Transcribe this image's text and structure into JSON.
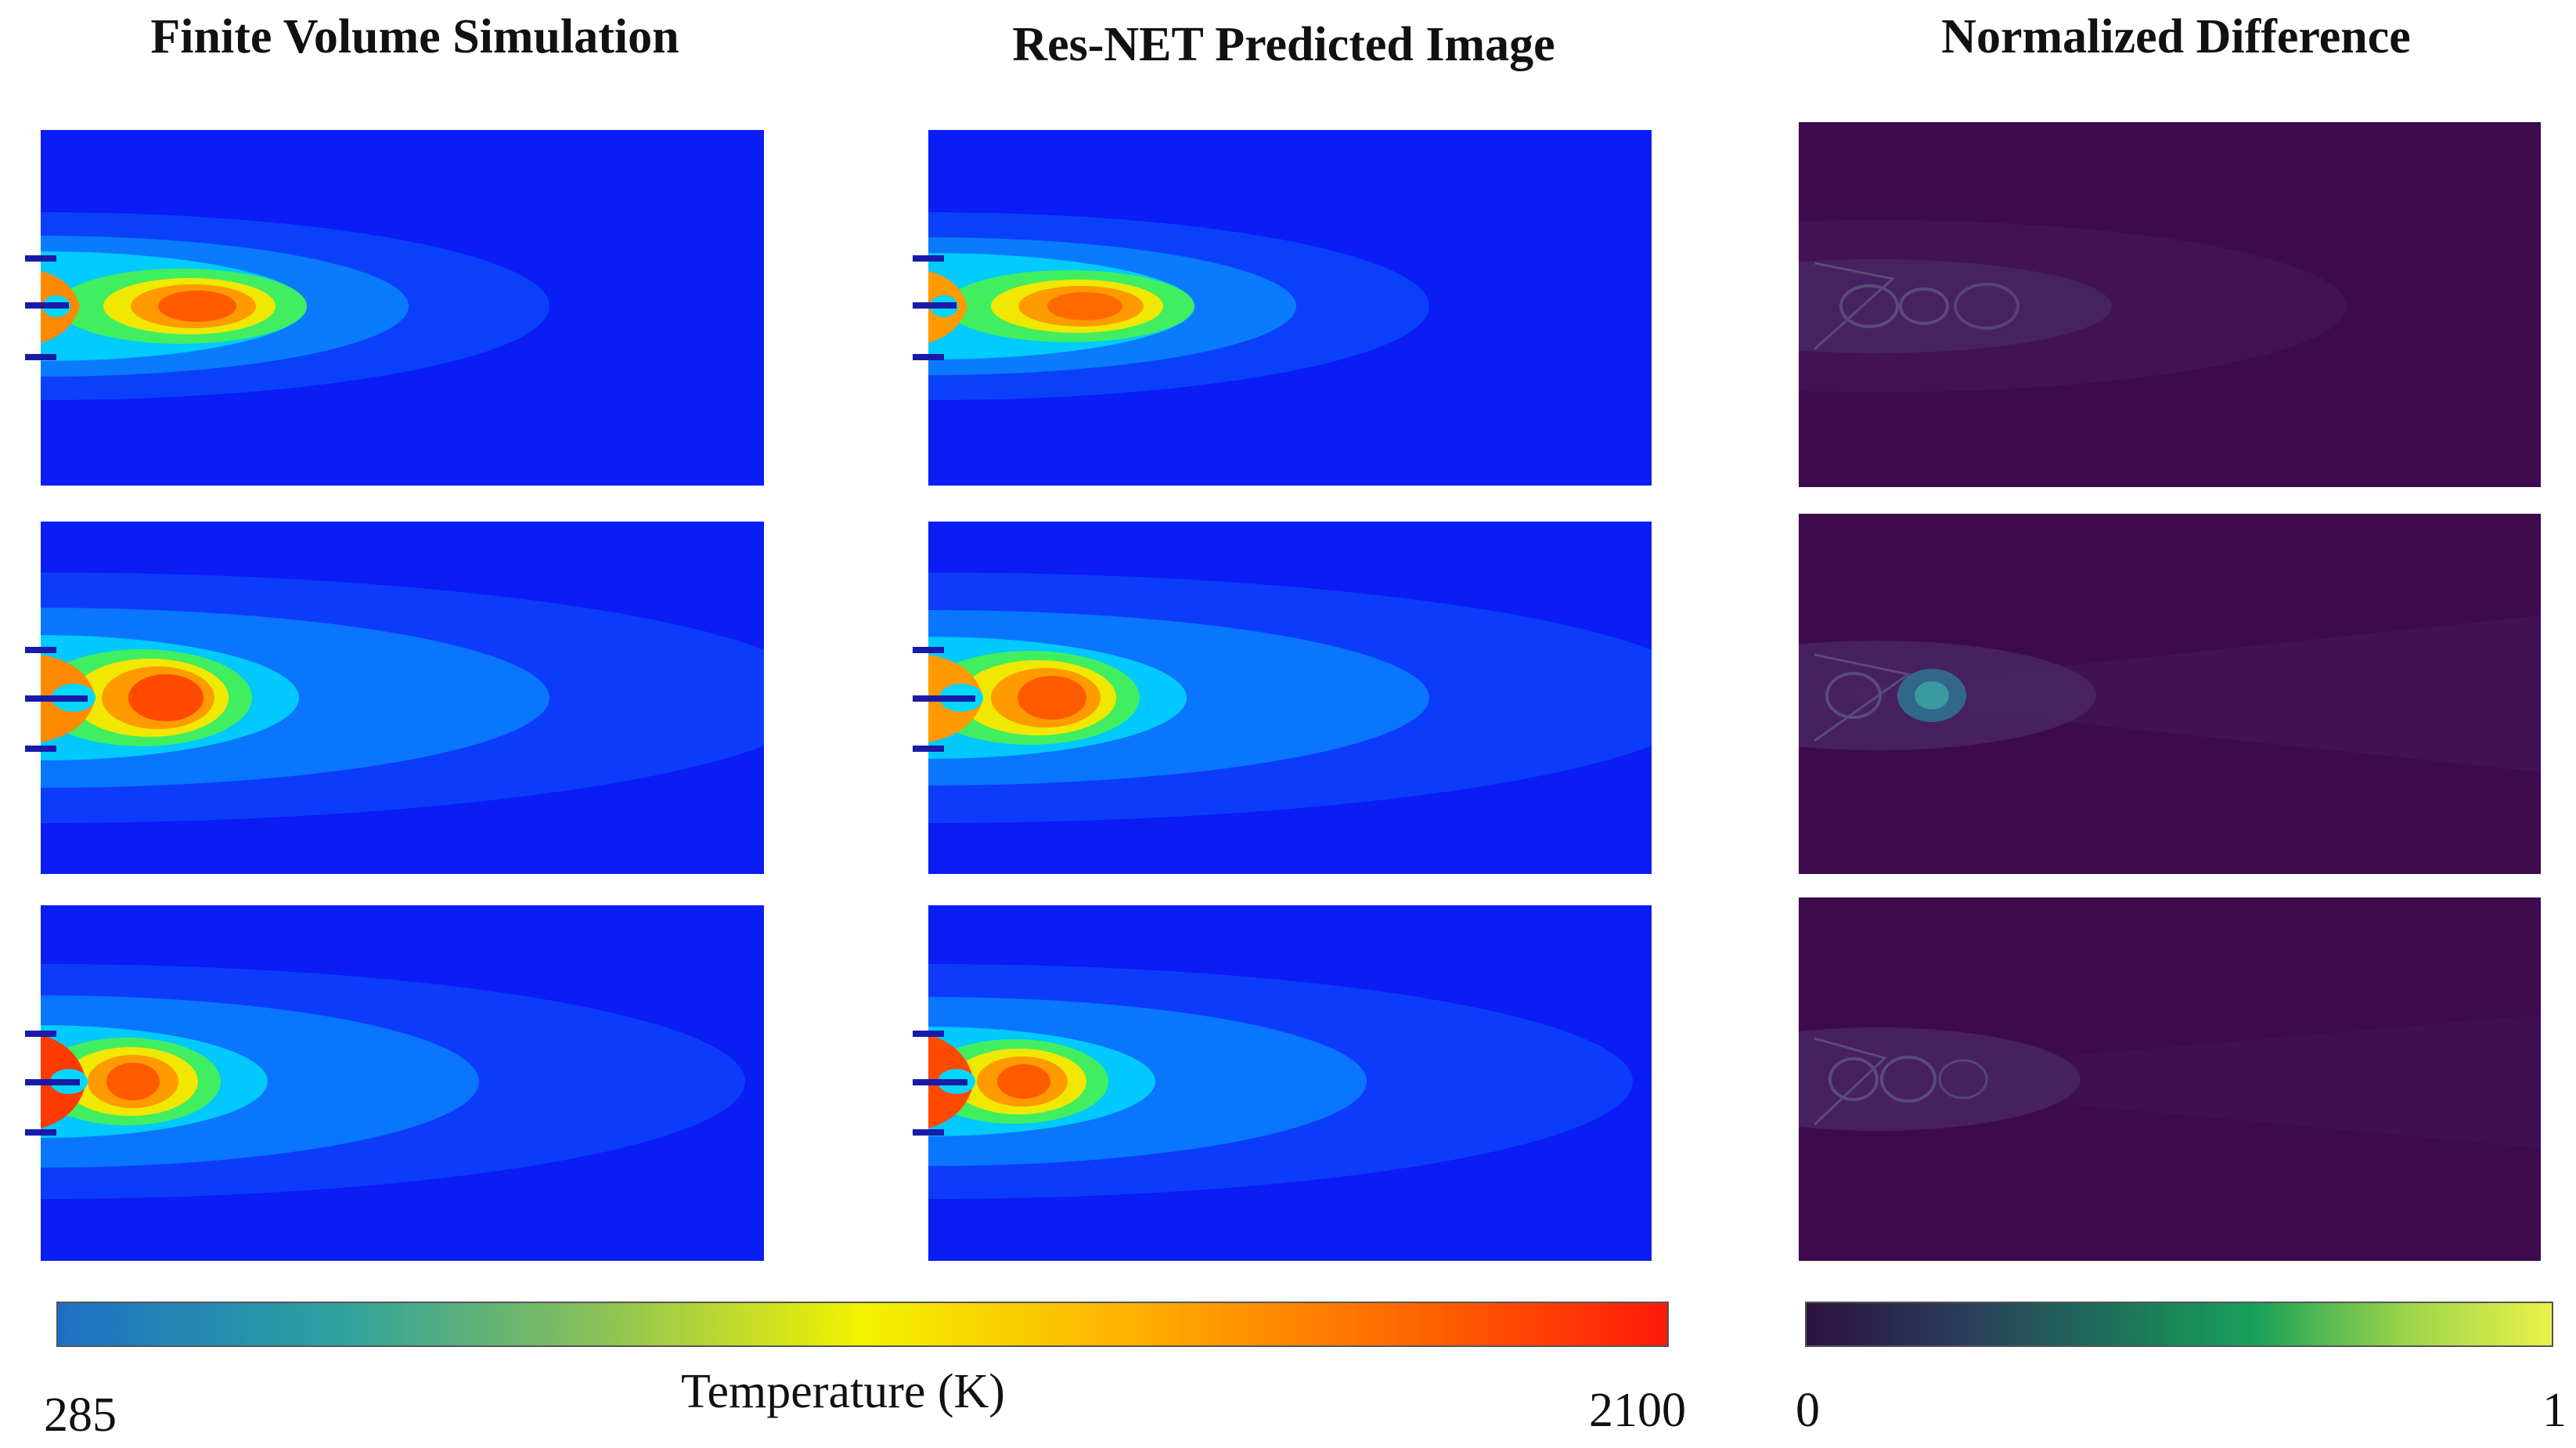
{
  "titles": {
    "col1": "Finite Volume Simulation",
    "col2": "Res-NET Predicted Image",
    "col3": "Normalized Difference"
  },
  "temperature_colorbar": {
    "label": "Temperature (K)",
    "min": "285",
    "max": "2100",
    "colormap": [
      "#1f6fc4",
      "#2aa0a0",
      "#88c05a",
      "#f3f300",
      "#ffb000",
      "#ff6a00",
      "#ff1a0a"
    ]
  },
  "difference_colorbar": {
    "min": "0",
    "max": "1",
    "colormap": [
      "#2b1240",
      "#2b3a5a",
      "#1e6e5a",
      "#18a05a",
      "#9ad44a",
      "#eaf24a"
    ]
  },
  "colors": {
    "field_background": "#0a1df5",
    "diff_background": "#3d0a4d"
  }
}
